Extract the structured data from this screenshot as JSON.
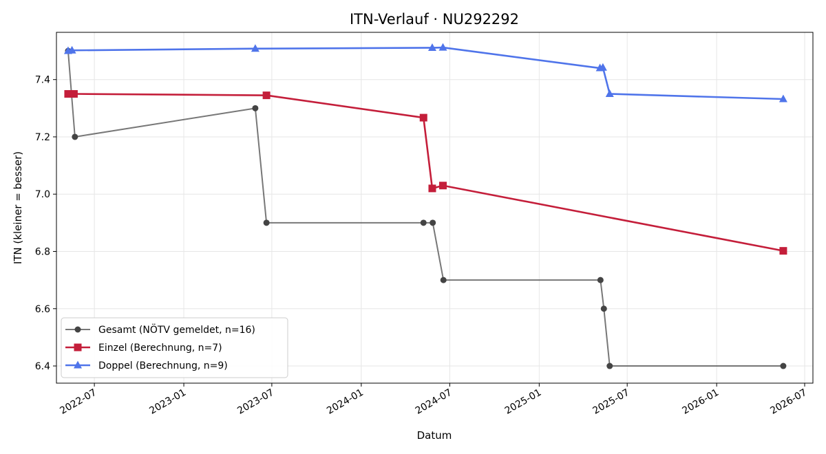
{
  "colors": {
    "gesamt": "#555555",
    "einzel": "#c41e3a",
    "doppel": "#4f74ea",
    "grid": "#e6e6e6",
    "axis": "#000000"
  },
  "chart_data": {
    "type": "line",
    "title": "ITN-Verlauf · NU292292",
    "xlabel": "Datum",
    "ylabel": "ITN  (kleiner = besser)",
    "xlim": [
      "2022-04-14",
      "2026-07-18"
    ],
    "ylim": [
      6.34,
      7.565
    ],
    "grid": true,
    "legend_position": "lower-left",
    "x_ticks": [
      "2022-07-01",
      "2023-01-01",
      "2023-07-01",
      "2024-01-01",
      "2024-07-01",
      "2025-01-01",
      "2025-07-01",
      "2026-01-01",
      "2026-07-01"
    ],
    "x_tick_labels": [
      "2022-07",
      "2023-01",
      "2023-07",
      "2024-01",
      "2024-07",
      "2025-01",
      "2025-07",
      "2026-01",
      "2026-07"
    ],
    "y_ticks": [
      6.4,
      6.6,
      6.8,
      7.0,
      7.2,
      7.4
    ],
    "y_tick_labels": [
      "6.4",
      "6.6",
      "6.8",
      "7.0",
      "7.2",
      "7.4"
    ],
    "series": [
      {
        "name": "Gesamt (NÖTV gemeldet, n=16)",
        "key": "gesamt",
        "marker": "circle",
        "points": [
          {
            "x": "2022-05-08",
            "y": 7.5
          },
          {
            "x": "2022-05-22",
            "y": 7.2
          },
          {
            "x": "2023-05-28",
            "y": 7.3
          },
          {
            "x": "2023-06-20",
            "y": 6.9
          },
          {
            "x": "2024-05-08",
            "y": 6.9
          },
          {
            "x": "2024-05-27",
            "y": 6.9
          },
          {
            "x": "2024-06-18",
            "y": 6.7
          },
          {
            "x": "2025-05-07",
            "y": 6.7
          },
          {
            "x": "2025-05-14",
            "y": 6.6
          },
          {
            "x": "2025-05-26",
            "y": 6.4
          },
          {
            "x": "2026-05-18",
            "y": 6.4
          }
        ]
      },
      {
        "name": "Einzel (Berechnung, n=7)",
        "key": "einzel",
        "marker": "square",
        "points": [
          {
            "x": "2022-05-08",
            "y": 7.35
          },
          {
            "x": "2022-05-20",
            "y": 7.35
          },
          {
            "x": "2023-06-20",
            "y": 7.345
          },
          {
            "x": "2024-05-08",
            "y": 7.267
          },
          {
            "x": "2024-05-26",
            "y": 7.02
          },
          {
            "x": "2024-06-17",
            "y": 7.03
          },
          {
            "x": "2026-05-18",
            "y": 6.802
          }
        ]
      },
      {
        "name": "Doppel (Berechnung, n=9)",
        "key": "doppel",
        "marker": "triangle",
        "points": [
          {
            "x": "2022-05-08",
            "y": 7.5
          },
          {
            "x": "2022-05-16",
            "y": 7.502
          },
          {
            "x": "2023-05-28",
            "y": 7.508
          },
          {
            "x": "2024-05-26",
            "y": 7.511
          },
          {
            "x": "2024-06-17",
            "y": 7.512
          },
          {
            "x": "2025-05-06",
            "y": 7.44
          },
          {
            "x": "2025-05-12",
            "y": 7.442
          },
          {
            "x": "2025-05-26",
            "y": 7.35
          },
          {
            "x": "2026-05-18",
            "y": 7.332
          }
        ]
      }
    ]
  }
}
